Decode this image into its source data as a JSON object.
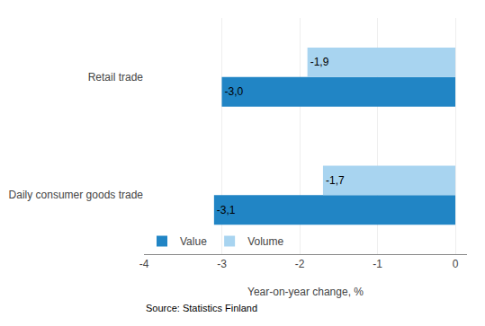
{
  "chart_data": {
    "type": "bar",
    "orientation": "horizontal",
    "categories": [
      "Daily consumer goods trade",
      "Retail trade"
    ],
    "series": [
      {
        "name": "Value",
        "color": "#2185c5",
        "values": [
          -3.1,
          -3.0
        ],
        "value_labels": [
          "-3,1",
          "-3,0"
        ]
      },
      {
        "name": "Volume",
        "color": "#a8d4f0",
        "values": [
          -1.7,
          -1.9
        ],
        "value_labels": [
          "-1,7",
          "-1,9"
        ]
      }
    ],
    "xlabel": "Year-on-year change, %",
    "xlim": [
      -4,
      0.15
    ],
    "xticks": [
      -4,
      -3,
      -2,
      -1,
      0
    ],
    "grid": true,
    "legend": "lower left",
    "data_labels": true,
    "annotations": [
      "Source: Statistics Finland"
    ]
  }
}
